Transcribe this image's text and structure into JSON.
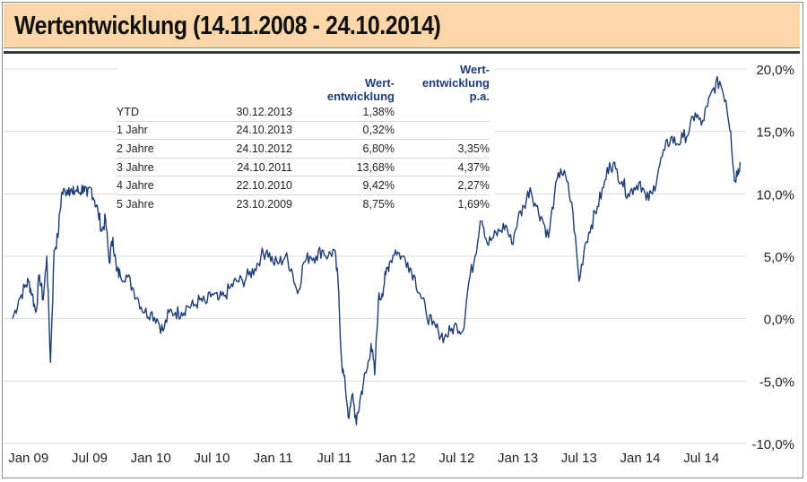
{
  "header": {
    "title": "Wertentwicklung (14.11.2008 - 24.10.2014)"
  },
  "colors": {
    "header_bg": "#fbd6a9",
    "line": "#1f3c73",
    "grid": "#dcdcdc"
  },
  "table": {
    "headers": [
      "",
      "",
      "Wert-\nentwicklung",
      "Wert-\nentwicklung\np.a."
    ],
    "rows": [
      {
        "label": "YTD",
        "date": "30.12.2013",
        "value": "1,38%",
        "pa": ""
      },
      {
        "label": "1 Jahr",
        "date": "24.10.2013",
        "value": "0,32%",
        "pa": ""
      },
      {
        "label": "2 Jahre",
        "date": "24.10.2012",
        "value": "6,80%",
        "pa": "3,35%"
      },
      {
        "label": "3 Jahre",
        "date": "24.10.2011",
        "value": "13,68%",
        "pa": "4,37%"
      },
      {
        "label": "4 Jahre",
        "date": "22.10.2010",
        "value": "9,42%",
        "pa": "2,27%"
      },
      {
        "label": "5 Jahre",
        "date": "23.10.2009",
        "value": "8,75%",
        "pa": "1,69%"
      }
    ]
  },
  "chart_data": {
    "type": "line",
    "title": "Wertentwicklung (14.11.2008 - 24.10.2014)",
    "xlabel": "",
    "ylabel": "",
    "x_ticks": [
      "Jan 09",
      "Jul 09",
      "Jan 10",
      "Jul 10",
      "Jan 11",
      "Jul 11",
      "Jan 12",
      "Jul 12",
      "Jan 13",
      "Jul 13",
      "Jan 14",
      "Jul 14"
    ],
    "y_ticks": [
      "20,0%",
      "15,0%",
      "10,0%",
      "5,0%",
      "0,0%",
      "-5,0%",
      "-10,0%"
    ],
    "ylim": [
      -10,
      20
    ],
    "xlim": [
      2008.87,
      2014.85
    ],
    "grid": true,
    "series": [
      {
        "name": "Wertentwicklung",
        "x": [
          2008.87,
          2008.92,
          2008.97,
          2009.0,
          2009.03,
          2009.06,
          2009.09,
          2009.12,
          2009.15,
          2009.18,
          2009.21,
          2009.24,
          2009.27,
          2009.3,
          2009.33,
          2009.36,
          2009.39,
          2009.42,
          2009.45,
          2009.48,
          2009.51,
          2009.54,
          2009.57,
          2009.6,
          2009.63,
          2009.66,
          2009.69,
          2009.72,
          2009.75,
          2009.8,
          2009.85,
          2009.9,
          2009.95,
          2010.0,
          2010.05,
          2010.1,
          2010.15,
          2010.2,
          2010.25,
          2010.3,
          2010.35,
          2010.4,
          2010.45,
          2010.5,
          2010.55,
          2010.6,
          2010.65,
          2010.7,
          2010.75,
          2010.8,
          2010.85,
          2010.9,
          2010.95,
          2011.0,
          2011.05,
          2011.1,
          2011.15,
          2011.2,
          2011.25,
          2011.3,
          2011.35,
          2011.4,
          2011.45,
          2011.5,
          2011.53,
          2011.56,
          2011.59,
          2011.62,
          2011.65,
          2011.68,
          2011.71,
          2011.74,
          2011.77,
          2011.8,
          2011.83,
          2011.86,
          2011.89,
          2011.92,
          2011.95,
          2012.0,
          2012.05,
          2012.1,
          2012.15,
          2012.2,
          2012.25,
          2012.3,
          2012.35,
          2012.4,
          2012.45,
          2012.5,
          2012.55,
          2012.6,
          2012.65,
          2012.7,
          2012.75,
          2012.8,
          2012.85,
          2012.9,
          2012.95,
          2013.0,
          2013.05,
          2013.1,
          2013.15,
          2013.2,
          2013.25,
          2013.3,
          2013.35,
          2013.4,
          2013.45,
          2013.5,
          2013.55,
          2013.6,
          2013.65,
          2013.7,
          2013.75,
          2013.8,
          2013.85,
          2013.9,
          2013.95,
          2014.0,
          2014.05,
          2014.1,
          2014.15,
          2014.2,
          2014.25,
          2014.3,
          2014.35,
          2014.4,
          2014.45,
          2014.5,
          2014.55,
          2014.6,
          2014.65,
          2014.7,
          2014.74,
          2014.77,
          2014.8,
          2014.82
        ],
        "values": [
          0.0,
          1.5,
          2.5,
          3.0,
          2.0,
          0.5,
          3.5,
          1.5,
          5.0,
          -3.5,
          5.5,
          6.5,
          10.0,
          10.2,
          10.5,
          10.0,
          10.3,
          10.1,
          10.6,
          9.8,
          10.5,
          9.5,
          8.5,
          7.0,
          8.0,
          4.5,
          6.5,
          3.8,
          3.5,
          3.5,
          2.5,
          1.5,
          0.5,
          0.5,
          0.0,
          -1.0,
          0.5,
          0.5,
          0.5,
          1.0,
          1.0,
          1.5,
          1.2,
          2.0,
          1.5,
          1.8,
          2.5,
          3.0,
          3.0,
          3.5,
          4.0,
          5.0,
          5.5,
          4.5,
          4.5,
          5.0,
          4.0,
          2.0,
          4.5,
          5.0,
          5.0,
          5.5,
          5.0,
          5.5,
          3.0,
          -3.5,
          -5.5,
          -8.0,
          -6.0,
          -8.5,
          -6.5,
          -5.0,
          -4.0,
          -2.0,
          -4.5,
          1.5,
          2.0,
          3.5,
          4.5,
          5.5,
          5.0,
          4.5,
          3.5,
          2.0,
          0.5,
          -0.5,
          -1.0,
          -1.5,
          -1.0,
          -0.5,
          -1.0,
          3.0,
          5.0,
          8.5,
          6.0,
          6.5,
          7.0,
          7.5,
          6.0,
          8.0,
          9.0,
          10.5,
          9.0,
          8.0,
          6.5,
          10.0,
          12.0,
          11.0,
          8.5,
          3.0,
          6.0,
          7.5,
          9.0,
          10.5,
          12.5,
          12.0,
          11.0,
          10.0,
          10.5,
          11.0,
          9.5,
          10.0,
          12.0,
          13.5,
          14.5,
          14.0,
          14.5,
          15.0,
          16.5,
          15.5,
          17.0,
          18.5,
          19.0,
          17.5,
          15.0,
          11.0,
          12.0,
          12.5
        ]
      }
    ]
  }
}
